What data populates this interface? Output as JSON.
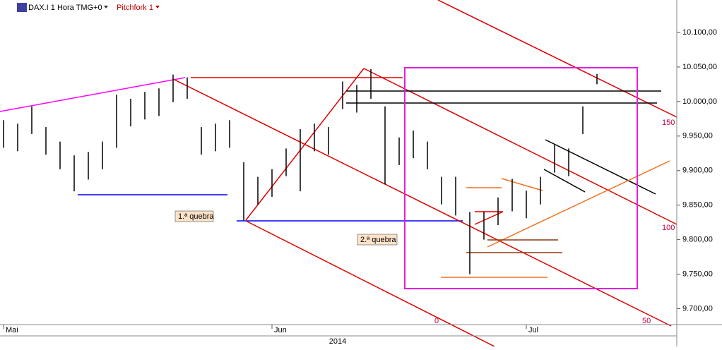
{
  "header": {
    "symbol": "DAX.I 1 Hora TMG+0",
    "study": "Pitchfork 1"
  },
  "chart_data": {
    "type": "ohlc",
    "categories": [
      "Mai",
      null,
      null,
      null,
      null,
      null,
      null,
      null,
      null,
      null,
      null,
      null,
      null,
      null,
      null,
      null,
      null,
      null,
      null,
      "Jun",
      null,
      null,
      null,
      null,
      null,
      null,
      null,
      null,
      null,
      null,
      null,
      null,
      null,
      null,
      null,
      null,
      null,
      "Jul",
      null,
      null,
      null,
      null,
      null
    ],
    "high": [
      9973,
      9968,
      9993,
      9963,
      9942,
      9922,
      9927,
      9942,
      10010,
      10004,
      10014,
      10019,
      10039,
      10035,
      9963,
      9968,
      9973,
      9912,
      9891,
      9902,
      9932,
      9960,
      9968,
      9963,
      10029,
      10024,
      10047,
      9993,
      9948,
      9958,
      9942,
      9891,
      9891,
      9840,
      9840,
      9861,
      9888,
      9871,
      9891,
      9937,
      9932,
      9993,
      10040
    ],
    "low": [
      9933,
      9928,
      9953,
      9923,
      9902,
      9870,
      9887,
      9902,
      9933,
      9964,
      9974,
      9979,
      9999,
      10004,
      9923,
      9928,
      9933,
      9828,
      9851,
      9862,
      9892,
      9870,
      9928,
      9923,
      9989,
      9984,
      10004,
      9880,
      9908,
      9918,
      9902,
      9851,
      9835,
      9750,
      9800,
      9821,
      9841,
      9831,
      9851,
      9897,
      9892,
      9953,
      10025
    ],
    "color": "#000000",
    "ylim": [
      9677,
      10147
    ],
    "yticks": [
      {
        "value": 9700,
        "label": "9.700,00"
      },
      {
        "value": 9750,
        "label": "9.750,00"
      },
      {
        "value": 9800,
        "label": "9.800,00"
      },
      {
        "value": 9850,
        "label": "9.850,00"
      },
      {
        "value": 9900,
        "label": "9.900,00"
      },
      {
        "value": 9950,
        "label": "9.950,00"
      },
      {
        "value": 10000,
        "label": "10.000,00"
      },
      {
        "value": 10050,
        "label": "10.050,00"
      },
      {
        "value": 10100,
        "label": "10.100,00"
      }
    ],
    "year_label": "2014",
    "annotations": [
      "1.ª quebra",
      "2.ª quebra"
    ],
    "pitchfork_levels": [
      "0",
      "50",
      "100",
      "150"
    ]
  }
}
